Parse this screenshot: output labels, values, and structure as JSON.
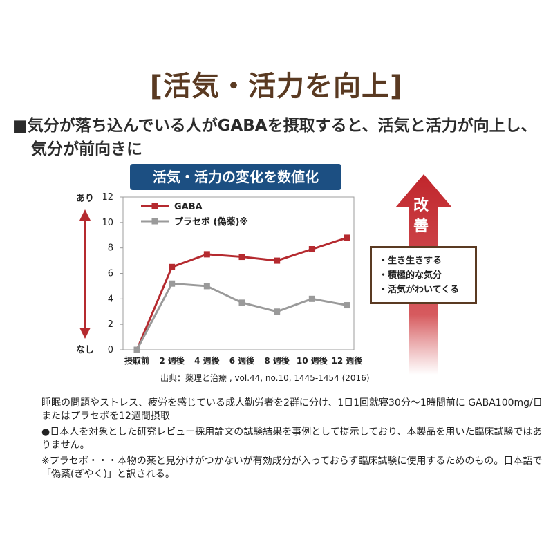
{
  "title": "[活気・活力を向上]",
  "lead": {
    "line1": "■気分が落ち込んでいる人がGABAを摂取すると、活気と活力が向上し、",
    "line2": "気分が前向きに"
  },
  "chart_badge": "活気・活力の変化を数値化",
  "colors": {
    "gaba": "#b52a2f",
    "placebo": "#9a9a9a",
    "badge": "#1c4f82",
    "brown": "#5a3a22",
    "arrow": "#c0262c"
  },
  "side": {
    "improve_chars": [
      "改",
      "善"
    ],
    "items": [
      "・生き生きする",
      "・積極的な気分",
      "・活気がわいてくる"
    ]
  },
  "source": "出典：薬理と治療 , vol.44, no.10, 1445-1454 (2016)",
  "notes": [
    "睡眠の問題やストレス、疲労を感じている成人勤労者を2群に分け、1日1回就寝30分〜1時間前に GABA100mg/日またはプラセボを12週間摂取",
    "●日本人を対象とした研究レビュー採用論文の試験結果を事例として提示しており、本製品を用いた臨床試験ではありません。",
    "※プラセボ・・・本物の薬と見分けがつかないが有効成分が入っておらず臨床試験に使用するためのもの。日本語で「偽薬(ぎやく)」と訳される。"
  ],
  "chart_data": {
    "type": "line",
    "title": "",
    "xlabel": "",
    "ylabel": "",
    "categories": [
      "摂取前",
      "2 週後",
      "4 週後",
      "6 週後",
      "8 週後",
      "10 週後",
      "12 週後"
    ],
    "ylim": [
      0,
      12
    ],
    "yticks": [
      0,
      2,
      4,
      6,
      8,
      10,
      12
    ],
    "y_top_label": "あり",
    "y_bottom_label": "なし",
    "grid": false,
    "legend_position": "top-left",
    "series": [
      {
        "name": "GABA",
        "values": [
          0,
          6.5,
          7.5,
          7.3,
          7.0,
          7.9,
          8.8
        ]
      },
      {
        "name": "プラセボ (偽薬)※",
        "values": [
          0,
          5.2,
          5.0,
          3.7,
          3.0,
          4.0,
          3.5
        ]
      }
    ]
  }
}
